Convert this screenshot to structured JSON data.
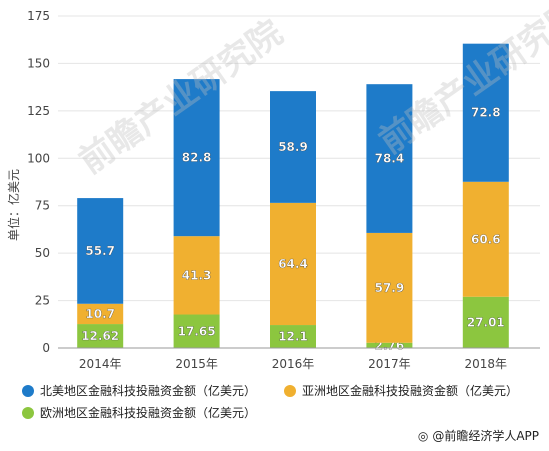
{
  "chart_data": {
    "type": "bar",
    "stacked": true,
    "categories": [
      "2014年",
      "2015年",
      "2016年",
      "2017年",
      "2018年"
    ],
    "series": [
      {
        "name": "欧洲地区金融科技投融资金额（亿美元）",
        "color": "#8cc63f",
        "values": [
          12.62,
          17.65,
          12.1,
          2.76,
          27.01
        ],
        "labels": [
          "12.62",
          "17.65",
          "12.1",
          "2.76",
          "27.01"
        ]
      },
      {
        "name": "亚洲地区金融科技投融资金额（亿美元）",
        "color": "#f0b030",
        "values": [
          10.7,
          41.3,
          64.4,
          57.9,
          60.6
        ],
        "labels": [
          "10.7",
          "41.3",
          "64.4",
          "57.9",
          "60.6"
        ]
      },
      {
        "name": "北美地区金融科技投融资金额（亿美元）",
        "color": "#1e7bc9",
        "values": [
          55.7,
          82.8,
          58.9,
          78.4,
          72.8
        ],
        "labels": [
          "55.7",
          "82.8",
          "58.9",
          "78.4",
          "72.8"
        ]
      }
    ],
    "ylabel": "单位：亿美元",
    "ylim": [
      0,
      175
    ],
    "yticks": [
      "0",
      "25",
      "50",
      "75",
      "100",
      "125",
      "150",
      "175"
    ],
    "ytick_values": [
      0,
      25,
      50,
      75,
      100,
      125,
      150,
      175
    ],
    "grid": true,
    "legend_position": "bottom"
  },
  "legend": [
    {
      "label": "北美地区金融科技投融资金额（亿美元）",
      "color": "#1e7bc9"
    },
    {
      "label": "亚洲地区金融科技投融资金额（亿美元）",
      "color": "#f0b030"
    },
    {
      "label": "欧洲地区金融科技投融资金额（亿美元）",
      "color": "#8cc63f"
    }
  ],
  "source": {
    "icon": "weibo-icon",
    "text": "@前瞻经济学人APP"
  },
  "watermark": {
    "text": "前瞻产业研究院"
  }
}
